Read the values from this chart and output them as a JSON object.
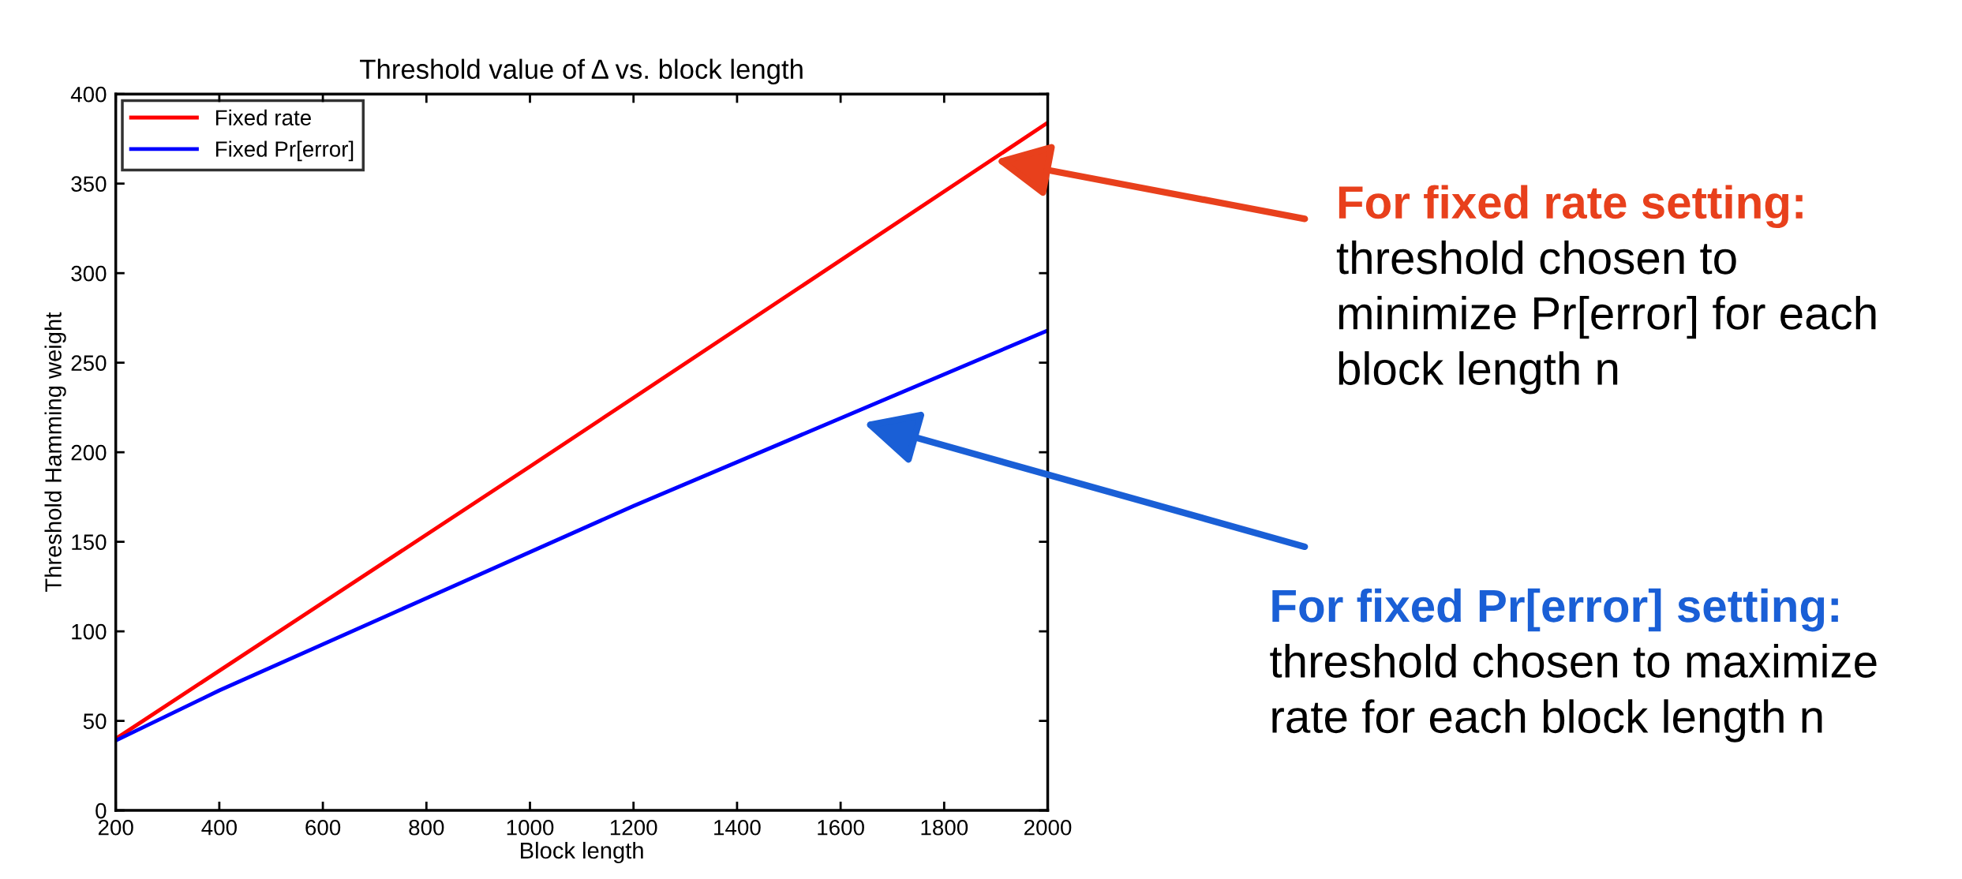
{
  "chart_data": {
    "type": "line",
    "title": "Threshold value of Δ vs. block length",
    "xlabel": "Block length",
    "ylabel": "Threshold Hamming weight",
    "series": [
      {
        "name": "Fixed rate",
        "color": "#ff0000",
        "x": [
          200,
          1000,
          2000
        ],
        "values": [
          40,
          192,
          384
        ]
      },
      {
        "name": "Fixed Pr[error]",
        "color": "#0000ff",
        "x": [
          200,
          400,
          1200,
          2000
        ],
        "values": [
          39,
          67,
          170,
          268
        ]
      }
    ],
    "xlim": [
      200,
      2000
    ],
    "xticks": [
      200,
      400,
      600,
      800,
      1000,
      1200,
      1400,
      1600,
      1800,
      2000
    ],
    "ylim": [
      0,
      400
    ],
    "yticks": [
      0,
      50,
      100,
      150,
      200,
      250,
      300,
      350,
      400
    ],
    "grid": false,
    "legend": "top left",
    "marker": "none",
    "line_style": "solid",
    "annotations": [
      "For fixed rate setting:",
      "threshold chosen to",
      "minimize Pr[error] for each",
      "block length n",
      "For fixed Pr[error] setting:",
      "threshold chosen to maximize",
      "rate for each block length n"
    ]
  }
}
